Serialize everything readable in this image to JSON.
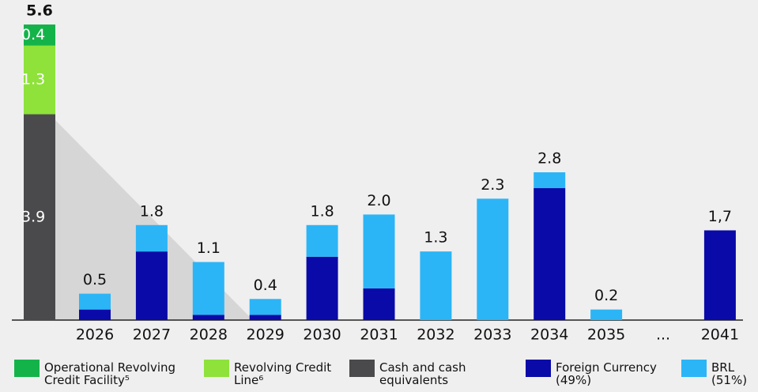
{
  "chart_data": {
    "type": "stacked-bar",
    "categories": [
      null,
      "2026",
      "2027",
      "2028",
      "2029",
      "2030",
      "2031",
      "2032",
      "2033",
      "2034",
      "2035",
      "...",
      "2041"
    ],
    "series": [
      {
        "name": "Operational Revolving Credit Facility⁵",
        "color": "#14b34a",
        "values": [
          0.4,
          null,
          null,
          null,
          null,
          null,
          null,
          null,
          null,
          null,
          null,
          null,
          null
        ]
      },
      {
        "name": "Revolving Credit Line⁶",
        "color": "#8ee23a",
        "values": [
          1.3,
          null,
          null,
          null,
          null,
          null,
          null,
          null,
          null,
          null,
          null,
          null,
          null
        ]
      },
      {
        "name": "Cash and cash equivalents",
        "color": "#4a4a4c",
        "values": [
          3.9,
          null,
          null,
          null,
          null,
          null,
          null,
          null,
          null,
          null,
          null,
          null,
          null
        ]
      },
      {
        "name": "Foreign Currency (49%)",
        "color": "#0a0aa8",
        "values": [
          null,
          0.2,
          1.3,
          0.1,
          0.1,
          1.2,
          0.6,
          0,
          0,
          2.5,
          0,
          null,
          1.7
        ]
      },
      {
        "name": "BRL (51%)",
        "color": "#2bb5f7",
        "values": [
          null,
          0.3,
          0.5,
          1.0,
          0.3,
          0.6,
          1.4,
          1.3,
          2.3,
          0.3,
          0.2,
          null,
          0
        ]
      }
    ],
    "totals": [
      5.6,
      0.5,
      1.8,
      1.1,
      0.4,
      1.8,
      2.0,
      1.3,
      2.3,
      2.8,
      0.2,
      null,
      1.7
    ],
    "value_labels": [
      "5.6",
      "0.5",
      "1.8",
      "1.1",
      "0.4",
      "1.8",
      "2.0",
      "1.3",
      "2.3",
      "2.8",
      "0.2",
      null,
      "1,7"
    ],
    "ylim": [
      0,
      5.6
    ]
  }
}
